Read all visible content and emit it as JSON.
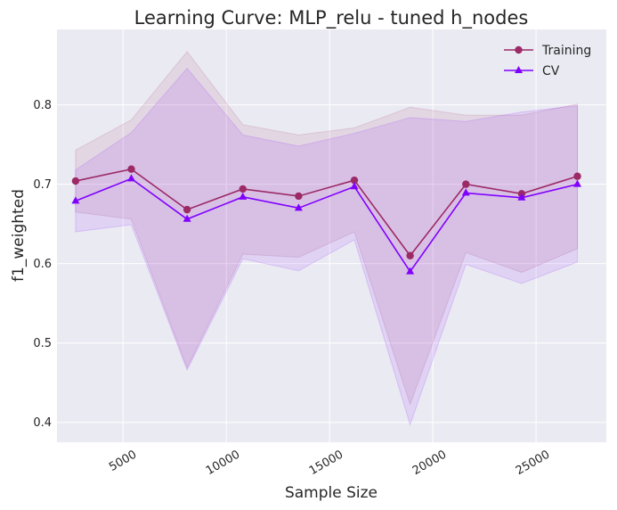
{
  "chart_data": {
    "type": "line",
    "title": "Learning Curve: MLP_relu - tuned h_nodes",
    "xlabel": "Sample Size",
    "ylabel": "f1_weighted",
    "xlim": [
      1800,
      28400
    ],
    "ylim": [
      0.375,
      0.895
    ],
    "xticks": [
      5000,
      10000,
      15000,
      20000,
      25000
    ],
    "yticks": [
      0.4,
      0.5,
      0.6,
      0.7,
      0.8
    ],
    "grid": true,
    "legend_position": "top-right",
    "x": [
      2700,
      5400,
      8100,
      10800,
      13500,
      16200,
      18900,
      21600,
      24300,
      27000
    ],
    "series": [
      {
        "name": "Training",
        "color": "#9c2a66",
        "marker": "circle",
        "values": [
          0.704,
          0.719,
          0.668,
          0.694,
          0.685,
          0.705,
          0.61,
          0.7,
          0.688,
          0.71
        ],
        "band_upper": [
          0.743,
          0.781,
          0.867,
          0.775,
          0.762,
          0.771,
          0.797,
          0.787,
          0.787,
          0.801
        ],
        "band_lower": [
          0.665,
          0.656,
          0.469,
          0.612,
          0.608,
          0.64,
          0.423,
          0.614,
          0.589,
          0.619
        ]
      },
      {
        "name": "CV",
        "color": "#8000ff",
        "marker": "triangle",
        "values": [
          0.679,
          0.707,
          0.656,
          0.684,
          0.67,
          0.697,
          0.59,
          0.689,
          0.683,
          0.7
        ],
        "band_upper": [
          0.718,
          0.765,
          0.846,
          0.762,
          0.748,
          0.764,
          0.784,
          0.779,
          0.791,
          0.799
        ],
        "band_lower": [
          0.64,
          0.649,
          0.466,
          0.606,
          0.591,
          0.63,
          0.397,
          0.599,
          0.575,
          0.602
        ]
      }
    ]
  }
}
